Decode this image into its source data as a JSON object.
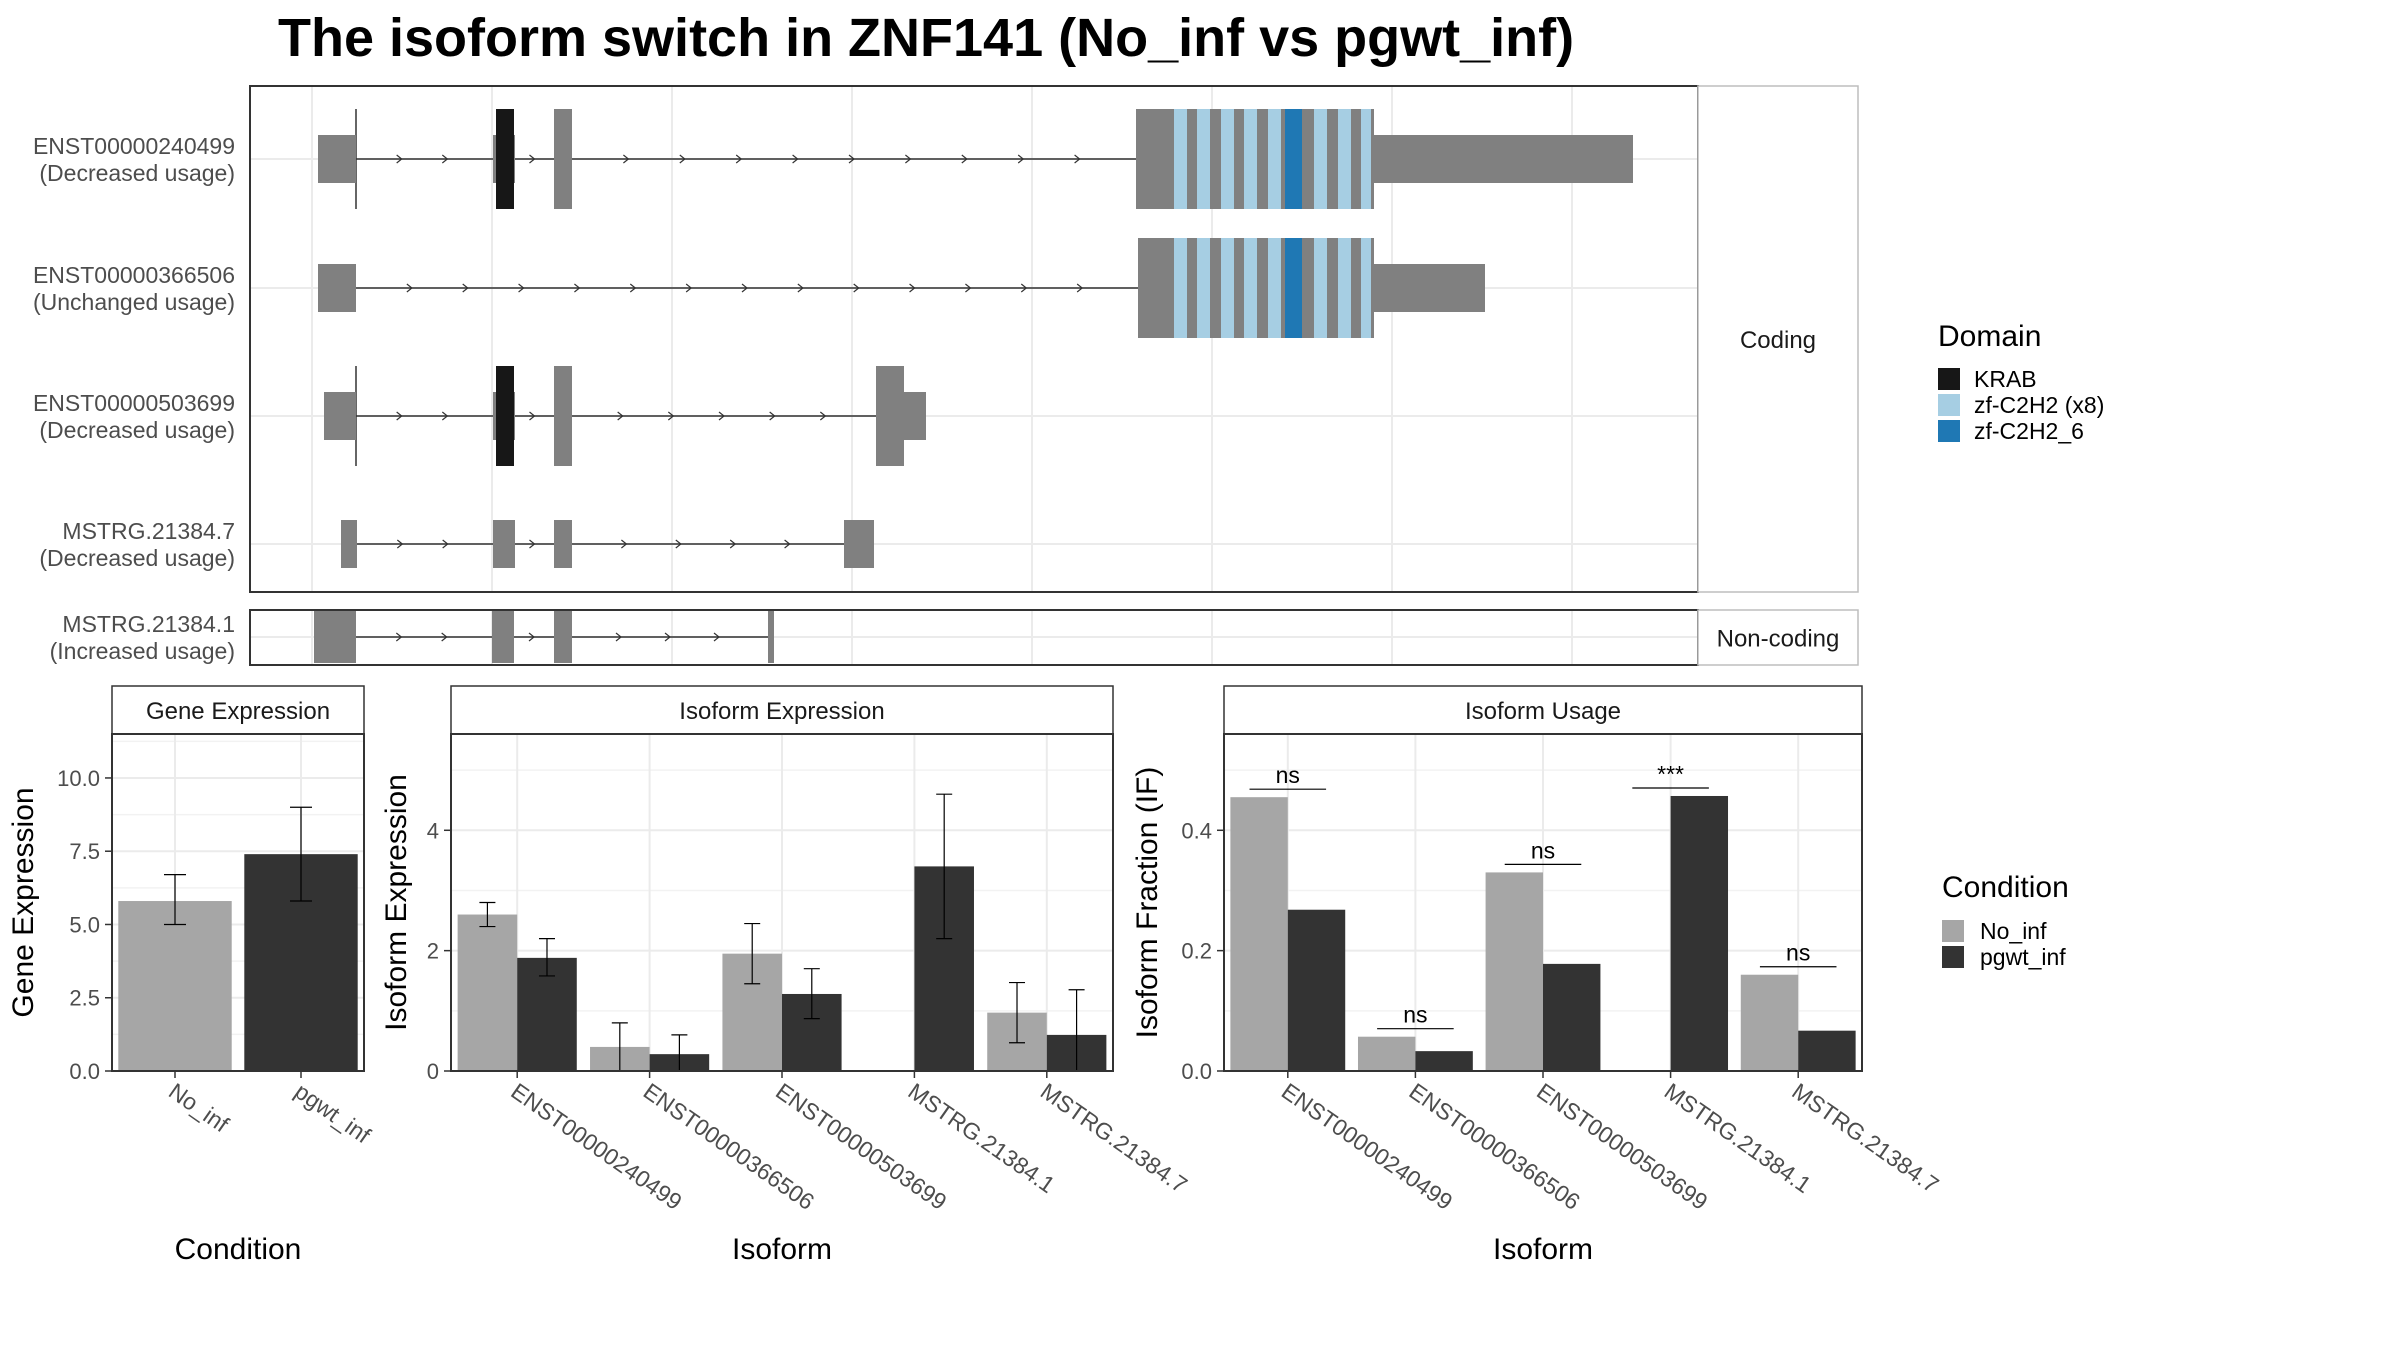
{
  "title": "The isoform switch in ZNF141 (No_inf vs pgwt_inf)",
  "colors": {
    "exon": "#808080",
    "no_inf": "#a6a6a6",
    "pgwt_inf": "#333333",
    "krab": "#171717",
    "zf_c2h2_x8": "#a6cee3",
    "zf_c2h2_6": "#1f78b4",
    "grid": "#ebebeb",
    "strip": "#ffffff"
  },
  "chart_data": [
    {
      "type": "gene-structure",
      "panels": [
        {
          "label": "Coding",
          "isoforms": [
            {
              "id": "ENST00000240499",
              "usage": "(Decreased usage)"
            },
            {
              "id": "ENST00000366506",
              "usage": "(Unchanged usage)"
            },
            {
              "id": "ENST00000503699",
              "usage": "(Decreased usage)"
            },
            {
              "id": "MSTRG.21384.7",
              "usage": "(Decreased usage)"
            }
          ]
        },
        {
          "label": "Non-coding",
          "isoforms": [
            {
              "id": "MSTRG.21384.1",
              "usage": "(Increased usage)"
            }
          ]
        }
      ],
      "legend": {
        "title": "Domain",
        "entries": [
          {
            "name": "KRAB",
            "color": "#171717"
          },
          {
            "name": "zf-C2H2 (x8)",
            "color": "#a6cee3"
          },
          {
            "name": "zf-C2H2_6",
            "color": "#1f78b4"
          }
        ]
      }
    },
    {
      "type": "bar",
      "strip": "Gene Expression",
      "xlabel": "Condition",
      "ylabel": "Gene Expression",
      "ylim": [
        0,
        11.5
      ],
      "yticks": [
        "0.0",
        "2.5",
        "5.0",
        "7.5",
        "10.0"
      ],
      "categories": [
        "No_inf",
        "pgwt_inf"
      ],
      "values": [
        5.8,
        7.4
      ],
      "errors": [
        [
          5.0,
          6.7
        ],
        [
          5.8,
          9.0
        ]
      ]
    },
    {
      "type": "bar",
      "strip": "Isoform Expression",
      "xlabel": "Isoform",
      "ylabel": "Isoform Expression",
      "ylim": [
        0,
        5.6
      ],
      "yticks": [
        "0",
        "2",
        "4"
      ],
      "categories": [
        "ENST00000240499",
        "ENST00000366506",
        "ENST00000503699",
        "MSTRG.21384.1",
        "MSTRG.21384.7"
      ],
      "series": [
        {
          "name": "No_inf",
          "values": [
            2.6,
            0.4,
            1.95,
            0.0,
            0.97
          ],
          "errors": [
            [
              2.4,
              2.8
            ],
            [
              0.0,
              0.8
            ],
            [
              1.45,
              2.45
            ],
            [
              0.0,
              0.0
            ],
            [
              0.47,
              1.47
            ]
          ]
        },
        {
          "name": "pgwt_inf",
          "values": [
            1.88,
            0.28,
            1.28,
            3.4,
            0.6
          ],
          "errors": [
            [
              1.58,
              2.2
            ],
            [
              0.0,
              0.6
            ],
            [
              0.87,
              1.7
            ],
            [
              2.2,
              4.6
            ],
            [
              0.0,
              1.35
            ]
          ]
        }
      ]
    },
    {
      "type": "bar",
      "strip": "Isoform Usage",
      "xlabel": "Isoform",
      "ylabel": "Isoform Fraction (IF)",
      "ylim": [
        0,
        0.56
      ],
      "yticks": [
        "0.0",
        "0.2",
        "0.4"
      ],
      "categories": [
        "ENST00000240499",
        "ENST00000366506",
        "ENST00000503699",
        "MSTRG.21384.1",
        "MSTRG.21384.7"
      ],
      "series": [
        {
          "name": "No_inf",
          "values": [
            0.455,
            0.057,
            0.33,
            0.0,
            0.16
          ]
        },
        {
          "name": "pgwt_inf",
          "values": [
            0.268,
            0.033,
            0.178,
            0.457,
            0.067
          ]
        }
      ],
      "significance": [
        "ns",
        "ns",
        "ns",
        "***",
        "ns"
      ],
      "legend": {
        "title": "Condition",
        "entries": [
          {
            "name": "No_inf",
            "color": "#a6a6a6"
          },
          {
            "name": "pgwt_inf",
            "color": "#333333"
          }
        ]
      }
    }
  ]
}
